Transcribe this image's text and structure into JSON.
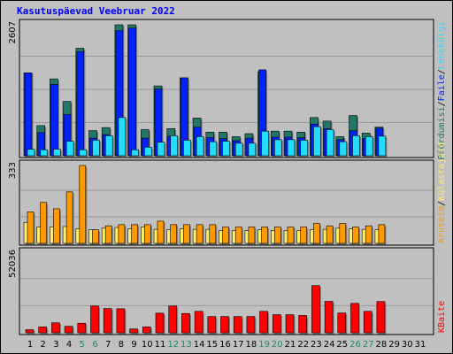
{
  "title": "Kasutuspäevad Veebruar 2022",
  "colors": {
    "background": "#c0c0c0",
    "title": "#0000ff",
    "weekday": "#000000",
    "weekend": "#228866",
    "visits": "#227766",
    "pages": "#0022ff",
    "files": "#22ddff",
    "hits": "#ff9900",
    "visitors": "#ffee66",
    "kbytes": "#ff0000"
  },
  "chart_data": [
    {
      "type": "bar",
      "panel": "top",
      "y_max_label": "2607",
      "ylim": [
        0,
        2607
      ],
      "legend": [
        "Pöördumisi",
        "Faile",
        "Lehekülgi"
      ],
      "legend_separator": "/",
      "categories": [
        "1",
        "2",
        "3",
        "4",
        "5",
        "6",
        "7",
        "8",
        "9",
        "10",
        "11",
        "12",
        "13",
        "14",
        "15",
        "16",
        "17",
        "18",
        "19",
        "20",
        "21",
        "22",
        "23",
        "24",
        "25",
        "26",
        "27",
        "28"
      ],
      "series": [
        {
          "name": "Pöördumisi",
          "values": [
            1650,
            600,
            1530,
            1080,
            2140,
            500,
            560,
            2607,
            2607,
            520,
            1390,
            540,
            1550,
            750,
            470,
            470,
            380,
            440,
            1670,
            490,
            490,
            470,
            760,
            690,
            380,
            800,
            450,
            570
          ]
        },
        {
          "name": "Faile",
          "values": [
            1650,
            460,
            1420,
            820,
            2070,
            350,
            420,
            2490,
            2540,
            350,
            1330,
            390,
            1550,
            570,
            360,
            340,
            300,
            350,
            1710,
            370,
            370,
            360,
            630,
            540,
            320,
            500,
            340,
            550
          ]
        },
        {
          "name": "Lehekülgi",
          "values": [
            130,
            120,
            130,
            290,
            120,
            310,
            400,
            760,
            120,
            170,
            270,
            400,
            310,
            380,
            280,
            290,
            250,
            250,
            490,
            320,
            320,
            310,
            580,
            520,
            280,
            400,
            380,
            390
          ]
        }
      ]
    },
    {
      "type": "bar",
      "panel": "middle",
      "y_max_label": "333",
      "ylim": [
        0,
        333
      ],
      "legend": [
        "Aruteid",
        "Külastajaid"
      ],
      "legend_separator": "/",
      "categories": [
        "1",
        "2",
        "3",
        "4",
        "5",
        "6",
        "7",
        "8",
        "9",
        "10",
        "11",
        "12",
        "13",
        "14",
        "15",
        "16",
        "17",
        "18",
        "19",
        "20",
        "21",
        "22",
        "23",
        "24",
        "25",
        "26",
        "27",
        "28"
      ],
      "series": [
        {
          "name": "Aruteid",
          "values": [
            135,
            175,
            148,
            220,
            333,
            58,
            75,
            80,
            80,
            80,
            95,
            80,
            80,
            80,
            80,
            70,
            70,
            70,
            70,
            70,
            70,
            70,
            85,
            75,
            85,
            70,
            75,
            80
          ]
        },
        {
          "name": "Külastajaid",
          "values": [
            90,
            70,
            70,
            72,
            62,
            58,
            65,
            68,
            62,
            70,
            60,
            58,
            62,
            60,
            60,
            55,
            55,
            55,
            58,
            55,
            55,
            55,
            58,
            60,
            65,
            62,
            60,
            58
          ]
        }
      ]
    },
    {
      "type": "bar",
      "panel": "bottom",
      "y_max_label": "52036",
      "ylim": [
        0,
        52036
      ],
      "legend": [
        "KBaite"
      ],
      "categories": [
        "1",
        "2",
        "3",
        "4",
        "5",
        "6",
        "7",
        "8",
        "9",
        "10",
        "11",
        "12",
        "13",
        "14",
        "15",
        "16",
        "17",
        "18",
        "19",
        "20",
        "21",
        "22",
        "23",
        "24",
        "25",
        "26",
        "27",
        "28"
      ],
      "series": [
        {
          "name": "KBaite",
          "values": [
            2000,
            3800,
            6500,
            4200,
            6200,
            17500,
            15800,
            15700,
            2500,
            3800,
            12800,
            17500,
            12600,
            14000,
            10600,
            10600,
            10600,
            10600,
            14000,
            11800,
            11800,
            11300,
            30800,
            20500,
            12900,
            19200,
            14000,
            20400
          ]
        }
      ]
    }
  ],
  "x_axis": {
    "days": [
      "1",
      "2",
      "3",
      "4",
      "5",
      "6",
      "7",
      "8",
      "9",
      "10",
      "11",
      "12",
      "13",
      "14",
      "15",
      "16",
      "17",
      "18",
      "19",
      "20",
      "21",
      "22",
      "23",
      "24",
      "25",
      "26",
      "27",
      "28",
      "29",
      "30",
      "31"
    ],
    "weekend_days": [
      "5",
      "6",
      "12",
      "13",
      "19",
      "20",
      "26",
      "27"
    ]
  }
}
